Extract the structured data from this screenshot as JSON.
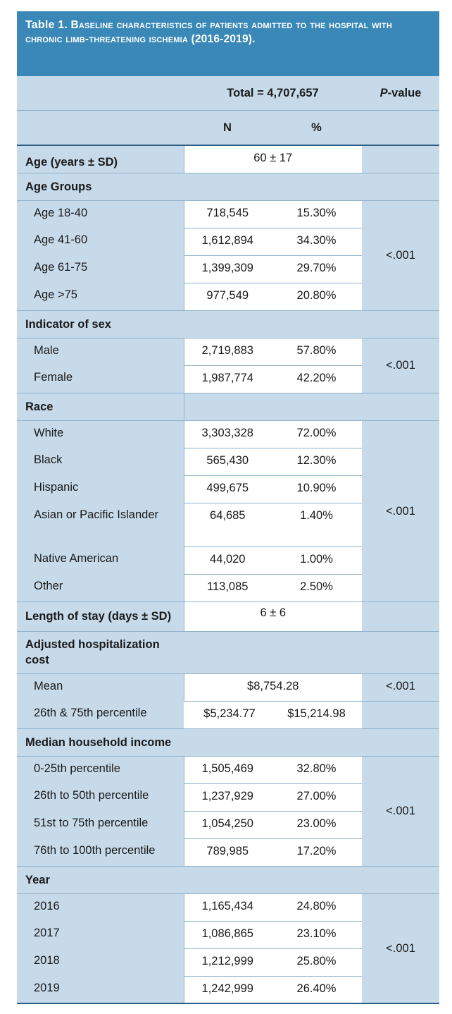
{
  "title": {
    "label": "Table 1.",
    "text": " Baseline characteristics of patients admitted to the hospital with chronic limb-threatening ischemia (2016-2019)."
  },
  "header": {
    "total": "Total = 4,707,657",
    "pvalue": "P-value",
    "n": "N",
    "pct": "%"
  },
  "rows": {
    "age_mean": {
      "label": "Age (years ± SD)",
      "value": "60 ± 17"
    },
    "age_groups": {
      "label": "Age Groups",
      "p": "<.001",
      "items": [
        {
          "label": "Age 18-40",
          "n": "718,545",
          "pct": "15.30%"
        },
        {
          "label": "Age 41-60",
          "n": "1,612,894",
          "pct": "34.30%"
        },
        {
          "label": "Age 61-75",
          "n": "1,399,309",
          "pct": "29.70%"
        },
        {
          "label": "Age >75",
          "n": "977,549",
          "pct": "20.80%"
        }
      ]
    },
    "sex": {
      "label": "Indicator of sex",
      "p": "<.001",
      "items": [
        {
          "label": "Male",
          "n": "2,719,883",
          "pct": "57.80%"
        },
        {
          "label": "Female",
          "n": "1,987,774",
          "pct": "42.20%"
        }
      ]
    },
    "race": {
      "label": "Race",
      "p": "<.001",
      "items": [
        {
          "label": "White",
          "n": "3,303,328",
          "pct": "72.00%"
        },
        {
          "label": "Black",
          "n": "565,430",
          "pct": "12.30%"
        },
        {
          "label": "Hispanic",
          "n": "499,675",
          "pct": "10.90%"
        },
        {
          "label": "Asian or Pacific Islander",
          "n": "64,685",
          "pct": "1.40%"
        },
        {
          "label": "Native American",
          "n": "44,020",
          "pct": "1.00%"
        },
        {
          "label": "Other",
          "n": "113,085",
          "pct": "2.50%"
        }
      ]
    },
    "los": {
      "label": "Length of stay (days ± SD)",
      "value": "6 ± 6"
    },
    "cost": {
      "label": "Adjusted hospitalization cost",
      "p": "<.001",
      "mean_label": "Mean",
      "mean_value": "$8,754.28",
      "pct_label": "26th & 75th percentile",
      "p25": "$5,234.77",
      "p75": "$15,214.98"
    },
    "income": {
      "label": "Median household income",
      "p": "<.001",
      "items": [
        {
          "label": "0-25th percentile",
          "n": "1,505,469",
          "pct": "32.80%"
        },
        {
          "label": "26th to 50th percentile",
          "n": "1,237,929",
          "pct": "27.00%"
        },
        {
          "label": "51st to 75th percentile",
          "n": "1,054,250",
          "pct": "23.00%"
        },
        {
          "label": "76th to 100th percentile",
          "n": "789,985",
          "pct": "17.20%"
        }
      ]
    },
    "year": {
      "label": "Year",
      "p": "<.001",
      "items": [
        {
          "label": "2016",
          "n": "1,165,434",
          "pct": "24.80%"
        },
        {
          "label": "2017",
          "n": "1,086,865",
          "pct": "23.10%"
        },
        {
          "label": "2018",
          "n": "1,212,999",
          "pct": "25.80%"
        },
        {
          "label": "2019",
          "n": "1,242,999",
          "pct": "26.40%"
        }
      ]
    }
  }
}
